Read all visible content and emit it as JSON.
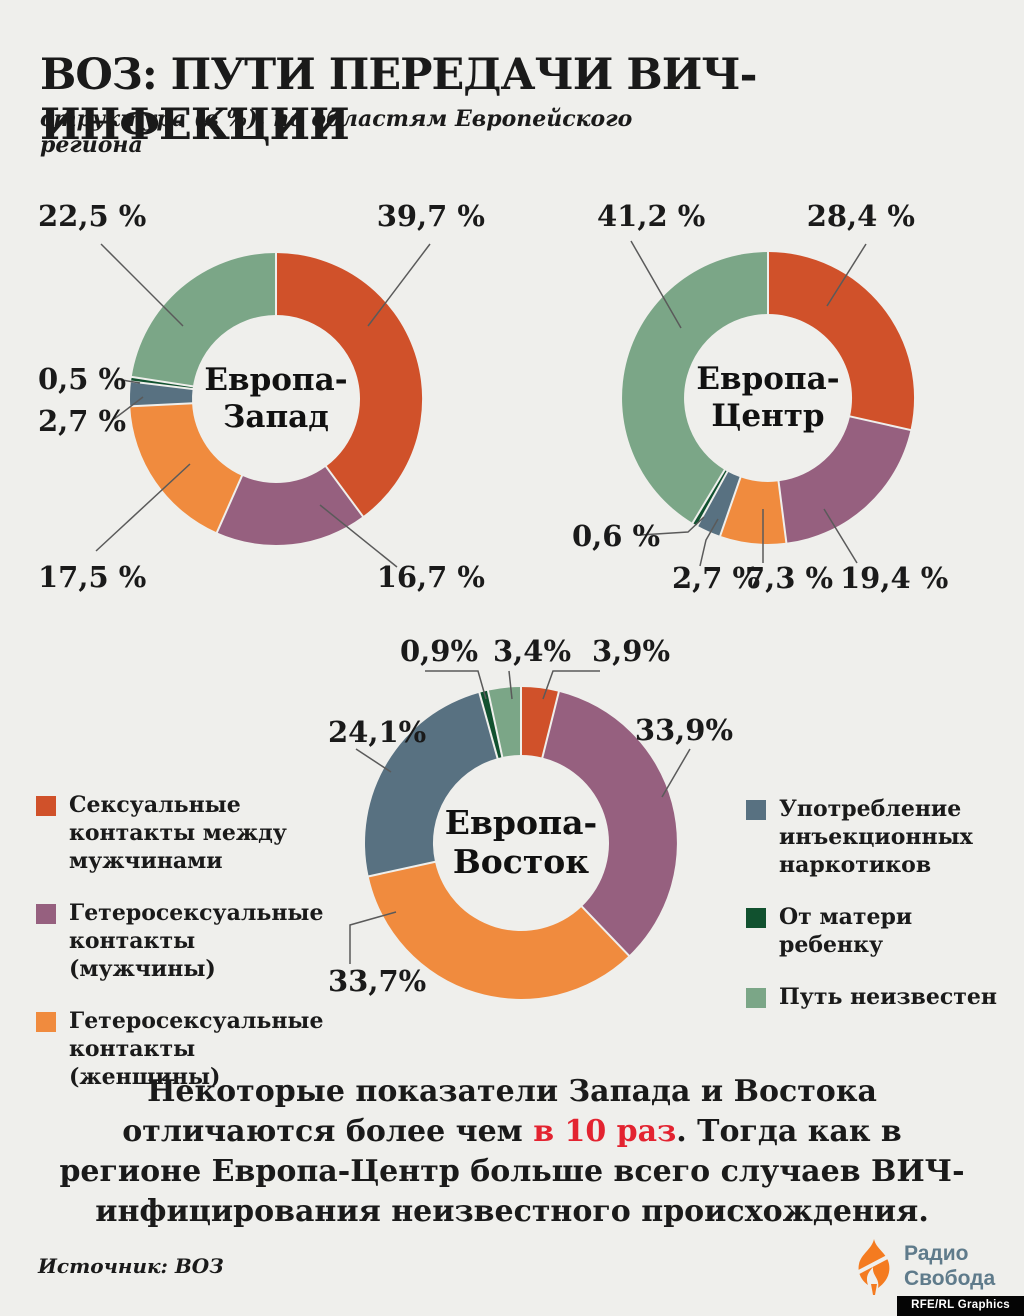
{
  "page": {
    "background": "#efefec"
  },
  "header": {
    "title": "ВОЗ: ПУТИ ПЕРЕДАЧИ ВИЧ-ИНФЕКЦИИ",
    "subtitle": "структура (в %), по областям Европейского региона"
  },
  "palette": {
    "msm": "#d0512a",
    "hetero_men": "#96607f",
    "hetero_women": "#f08b3e",
    "idu": "#587181",
    "mother_child": "#11512f",
    "unknown": "#7ba687",
    "accent_red": "#e32330",
    "leader_line": "#5a5a5a",
    "text": "#1a1a1a"
  },
  "slice_color_keys": [
    "msm",
    "hetero_men",
    "hetero_women",
    "idu",
    "mother_child",
    "unknown"
  ],
  "chart_data": [
    {
      "type": "pie",
      "style": "donut",
      "title": "Европа-Запад",
      "center_line1": "Европа-",
      "center_line2": "Запад",
      "categories": [
        "Сексуальные контакты между мужчинами",
        "Гетеросексуальные контакты (мужчины)",
        "Гетеросексуальные контакты (женщины)",
        "Употребление инъекционных наркотиков",
        "От матери ребенку",
        "Путь неизвестен"
      ],
      "values": [
        39.7,
        16.7,
        17.5,
        2.7,
        0.5,
        22.5
      ],
      "labels": [
        "39,7 %",
        "16,7 %",
        "17,5 %",
        "2,7 %",
        "0,5 %",
        "22,5 %"
      ],
      "unit": "%"
    },
    {
      "type": "pie",
      "style": "donut",
      "title": "Европа-Центр",
      "center_line1": "Европа-",
      "center_line2": "Центр",
      "categories": [
        "Сексуальные контакты между мужчинами",
        "Гетеросексуальные контакты (мужчины)",
        "Гетеросексуальные контакты (женщины)",
        "Употребление инъекционных наркотиков",
        "От матери ребенку",
        "Путь неизвестен"
      ],
      "values": [
        28.4,
        19.4,
        7.3,
        2.7,
        0.6,
        41.2
      ],
      "labels": [
        "28,4 %",
        "19,4 %",
        "7,3 %",
        "2,7 %",
        "0,6 %",
        "41,2 %"
      ],
      "unit": "%"
    },
    {
      "type": "pie",
      "style": "donut",
      "title": "Европа-Восток",
      "center_line1": "Европа-",
      "center_line2": "Восток",
      "categories": [
        "Сексуальные контакты между мужчинами",
        "Гетеросексуальные контакты (мужчины)",
        "Гетеросексуальные контакты (женщины)",
        "Употребление инъекционных наркотиков",
        "От матери ребенку",
        "Путь неизвестен"
      ],
      "values": [
        3.9,
        33.9,
        33.7,
        24.1,
        0.9,
        3.4
      ],
      "labels": [
        "3,9%",
        "33,9%",
        "33,7%",
        "24,1%",
        "0,9%",
        "3,4%"
      ],
      "unit": "%"
    }
  ],
  "legend": {
    "left": [
      {
        "color_key": "msm",
        "label": "Сексуальные\nконтакты между\nмужчинами"
      },
      {
        "color_key": "hetero_men",
        "label": "Гетеросексуальные\nконтакты (мужчины)"
      },
      {
        "color_key": "hetero_women",
        "label": "Гетеросексуальные\nконтакты\n(женщины)"
      }
    ],
    "right": [
      {
        "color_key": "idu",
        "label": "Употребление\nинъекционных\nнаркотиков"
      },
      {
        "color_key": "mother_child",
        "label": "От матери\nребенку"
      },
      {
        "color_key": "unknown",
        "label": "Путь неизвестен"
      }
    ]
  },
  "note": {
    "part1": "Некоторые показатели Запада и Востока отличаются более чем ",
    "accent": "в 10 раз",
    "part2": ". Тогда как в регионе Европа-Центр больше всего случаев ВИЧ-инфицирования неизвестного происхождения."
  },
  "footer": {
    "source": "Источник: ВОЗ",
    "logo_text": "Радио\nСвобода",
    "credit": "RFE/RL Graphics"
  }
}
